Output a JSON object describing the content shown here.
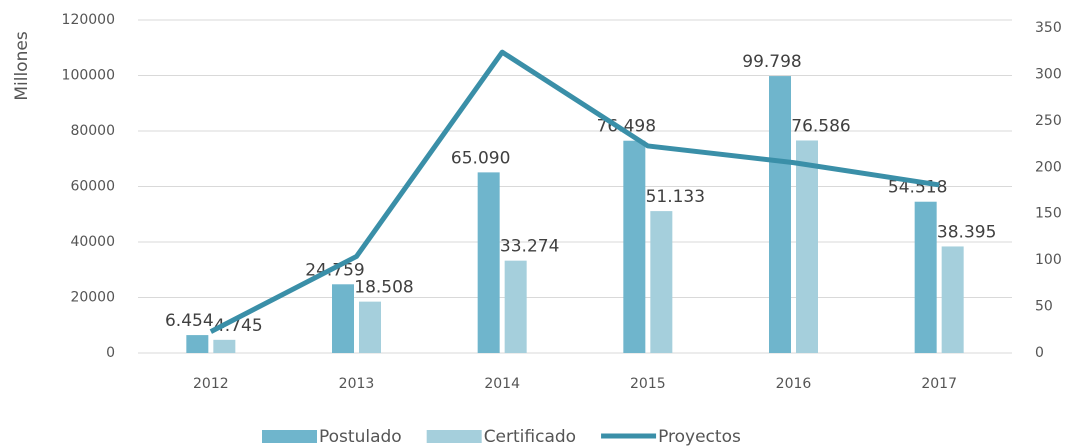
{
  "chart_data": {
    "type": "bar_line",
    "y_label": "Millones",
    "categories": [
      "2012",
      "2013",
      "2014",
      "2015",
      "2016",
      "2017"
    ],
    "series": [
      {
        "name": "Postulado",
        "type": "bar",
        "color": "#6fb5cc",
        "values": [
          6454,
          24759,
          65090,
          76498,
          99798,
          54518
        ],
        "value_labels": [
          "6.454",
          "24.759",
          "65.090",
          "76.498",
          "99.798",
          "54.518"
        ]
      },
      {
        "name": "Certificado",
        "type": "bar",
        "color": "#a5cfdc",
        "values": [
          4745,
          18508,
          33274,
          51133,
          76586,
          38395
        ],
        "value_labels": [
          "4.745",
          "18.508",
          "33.274",
          "51.133",
          "76.586",
          "38.395"
        ]
      },
      {
        "name": "Proyectos",
        "type": "line",
        "axis": "y2",
        "color": "#3a8fa8",
        "values": [
          23,
          104,
          324,
          223,
          205,
          181
        ]
      }
    ],
    "ylim": [
      0,
      120000
    ],
    "yticks": [
      0,
      20000,
      40000,
      60000,
      80000,
      100000,
      120000
    ],
    "y2lim": [
      0,
      350
    ],
    "y2ticks": [
      0,
      50,
      100,
      150,
      200,
      250,
      300,
      350
    ],
    "grid": true,
    "legend": "bottom"
  }
}
